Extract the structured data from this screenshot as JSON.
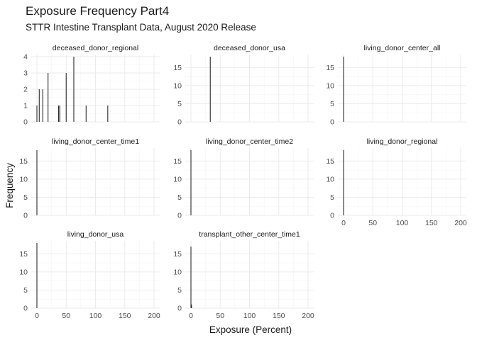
{
  "title": "Exposure Frequency Part4",
  "subtitle": "STTR Intestine Transplant Data, August 2020 Release",
  "chart_data": {
    "type": "bar",
    "xlabel": "Exposure (Percent)",
    "ylabel": "Frequency",
    "xlim": [
      0,
      200
    ],
    "x_ticks": [
      0,
      50,
      100,
      150,
      200
    ],
    "grid": true,
    "facets": [
      {
        "name": "deceased_donor_regional",
        "ylim": [
          0,
          4
        ],
        "y_ticks": [
          0,
          1,
          2,
          3,
          4
        ],
        "bars": [
          {
            "x": 0,
            "y": 1
          },
          {
            "x": 4,
            "y": 2
          },
          {
            "x": 10,
            "y": 2
          },
          {
            "x": 19,
            "y": 3
          },
          {
            "x": 37,
            "y": 1
          },
          {
            "x": 39,
            "y": 1
          },
          {
            "x": 50,
            "y": 3
          },
          {
            "x": 63,
            "y": 4
          },
          {
            "x": 84,
            "y": 1
          },
          {
            "x": 121,
            "y": 1
          }
        ]
      },
      {
        "name": "deceased_donor_usa",
        "ylim": [
          0,
          18
        ],
        "y_ticks": [
          0,
          5,
          10,
          15
        ],
        "bars": [
          {
            "x": 33,
            "y": 18
          }
        ]
      },
      {
        "name": "living_donor_center_all",
        "ylim": [
          0,
          18
        ],
        "y_ticks": [
          0,
          5,
          10,
          15
        ],
        "bars": [
          {
            "x": 0,
            "y": 18
          }
        ]
      },
      {
        "name": "living_donor_center_time1",
        "ylim": [
          0,
          18
        ],
        "y_ticks": [
          0,
          5,
          10,
          15
        ],
        "bars": [
          {
            "x": 0,
            "y": 18
          }
        ]
      },
      {
        "name": "living_donor_center_time2",
        "ylim": [
          0,
          18
        ],
        "y_ticks": [
          0,
          5,
          10,
          15
        ],
        "bars": [
          {
            "x": 0,
            "y": 18
          }
        ]
      },
      {
        "name": "living_donor_regional",
        "ylim": [
          0,
          18
        ],
        "y_ticks": [
          0,
          5,
          10,
          15
        ],
        "bars": [
          {
            "x": 0,
            "y": 18
          }
        ]
      },
      {
        "name": "living_donor_usa",
        "ylim": [
          0,
          18
        ],
        "y_ticks": [
          0,
          5,
          10,
          15
        ],
        "bars": [
          {
            "x": 0,
            "y": 18
          }
        ]
      },
      {
        "name": "transplant_other_center_time1",
        "ylim": [
          0,
          18
        ],
        "y_ticks": [
          0,
          5,
          10,
          15
        ],
        "bars": [
          {
            "x": 0,
            "y": 17
          },
          {
            "x": 1,
            "y": 1
          }
        ]
      }
    ]
  }
}
